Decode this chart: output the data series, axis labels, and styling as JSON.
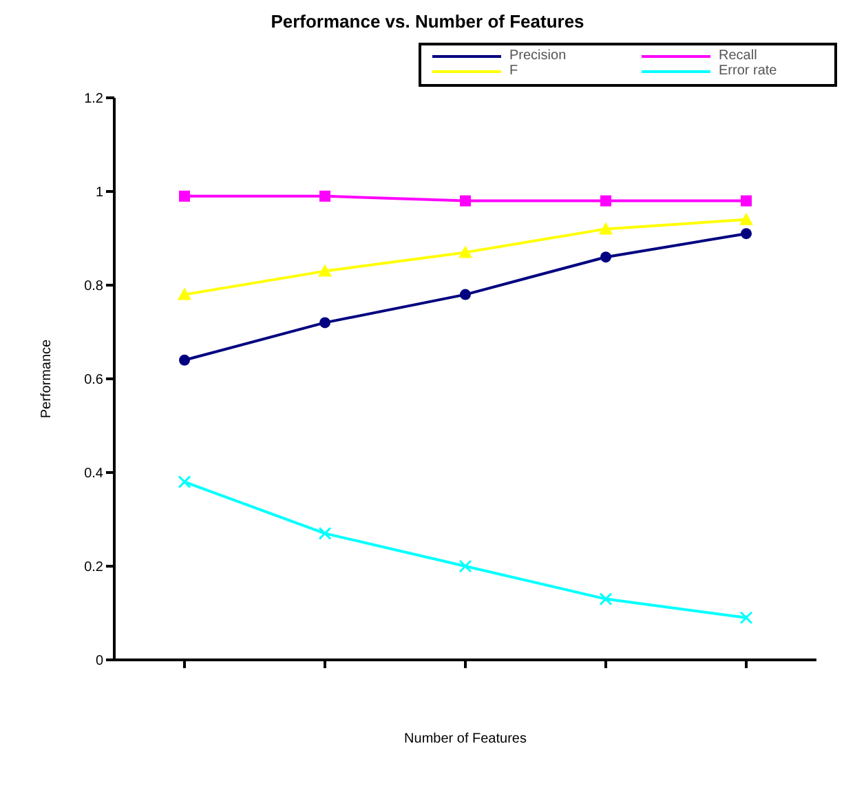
{
  "chart_data": {
    "type": "line",
    "title": "Performance vs. Number of Features",
    "xlabel": "Number of Features",
    "ylabel": "Performance",
    "categories": [
      null,
      null,
      null,
      null,
      null
    ],
    "series": [
      {
        "name": "Precision",
        "color": "#000080",
        "marker": "circle",
        "values": [
          0.64,
          0.72,
          0.78,
          0.86,
          0.91
        ]
      },
      {
        "name": "Recall",
        "color": "#ff00ff",
        "marker": "square",
        "values": [
          0.99,
          0.99,
          0.98,
          0.98,
          0.98
        ]
      },
      {
        "name": "F",
        "color": "#ffff00",
        "marker": "triangle",
        "values": [
          0.78,
          0.83,
          0.87,
          0.92,
          0.94
        ]
      },
      {
        "name": "Error rate",
        "color": "#00ffff",
        "marker": "cross",
        "values": [
          0.38,
          0.27,
          0.2,
          0.13,
          0.09
        ]
      }
    ],
    "ylim": [
      0,
      1.2
    ],
    "yticks": [
      0,
      0.2,
      0.4,
      0.6,
      0.8,
      1,
      1.2
    ],
    "grid": false,
    "legend": "top right",
    "line_style": "solid"
  }
}
